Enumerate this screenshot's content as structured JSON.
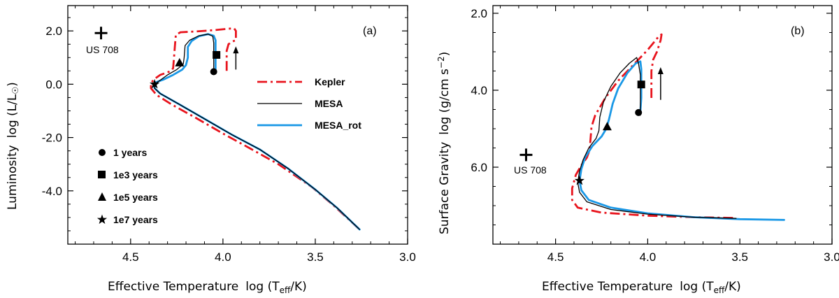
{
  "chart_data": [
    {
      "type": "line",
      "panel_label": "(a)",
      "xlabel": "Effective Temperature",
      "xlabel_math": "log (T_eff/K)",
      "ylabel": "Luminosity",
      "ylabel_math": "log (L/L☉)",
      "xlim": [
        4.84,
        3.0
      ],
      "ylim": [
        -6.0,
        2.95
      ],
      "xticks": [
        "4.5",
        "4.0",
        "3.5",
        "3.0"
      ],
      "yticks": [
        "2.0",
        "0.0",
        "-2.0",
        "-4.0"
      ],
      "target": {
        "name": "US 708",
        "x": 4.66,
        "y": 1.92
      },
      "arrow": {
        "x": 3.93,
        "y_from": 0.55,
        "y_to": 1.42
      },
      "series": [
        {
          "name": "Kepler",
          "color": "#e8141d",
          "style": "dashdot",
          "width": 2.8,
          "points": [
            [
              3.98,
              0.5
            ],
            [
              3.98,
              1.25
            ],
            [
              3.97,
              1.5
            ],
            [
              3.95,
              1.6
            ],
            [
              3.93,
              1.65
            ],
            [
              3.93,
              2.0
            ],
            [
              3.94,
              2.1
            ],
            [
              3.97,
              2.08
            ],
            [
              4.05,
              2.03
            ],
            [
              4.15,
              1.98
            ],
            [
              4.23,
              1.95
            ],
            [
              4.255,
              1.85
            ],
            [
              4.26,
              1.45
            ],
            [
              4.265,
              1.0
            ],
            [
              4.27,
              0.6
            ],
            [
              4.28,
              0.5
            ],
            [
              4.31,
              0.42
            ],
            [
              4.34,
              0.35
            ],
            [
              4.37,
              0.2
            ],
            [
              4.39,
              0.05
            ],
            [
              4.39,
              -0.15
            ],
            [
              4.36,
              -0.4
            ],
            [
              4.28,
              -0.75
            ],
            [
              4.15,
              -1.25
            ],
            [
              4.0,
              -1.85
            ],
            [
              3.85,
              -2.42
            ],
            [
              3.7,
              -3.0
            ],
            [
              3.52,
              -3.85
            ],
            [
              3.4,
              -4.55
            ],
            [
              3.26,
              -5.45
            ]
          ]
        },
        {
          "name": "MESA",
          "color": "#000000",
          "style": "solid",
          "width": 1.3,
          "points": [
            [
              4.05,
              0.47
            ],
            [
              4.05,
              1.1
            ],
            [
              4.05,
              1.55
            ],
            [
              4.055,
              1.8
            ],
            [
              4.08,
              1.88
            ],
            [
              4.13,
              1.82
            ],
            [
              4.18,
              1.65
            ],
            [
              4.205,
              1.45
            ],
            [
              4.21,
              1.0
            ],
            [
              4.215,
              0.75
            ],
            [
              4.25,
              0.55
            ],
            [
              4.3,
              0.35
            ],
            [
              4.34,
              0.15
            ],
            [
              4.37,
              0.0
            ],
            [
              4.37,
              -0.15
            ],
            [
              4.34,
              -0.35
            ],
            [
              4.25,
              -0.7
            ],
            [
              4.1,
              -1.3
            ],
            [
              3.95,
              -1.9
            ],
            [
              3.8,
              -2.45
            ],
            [
              3.65,
              -3.15
            ],
            [
              3.5,
              -3.95
            ],
            [
              3.38,
              -4.65
            ],
            [
              3.26,
              -5.45
            ]
          ]
        },
        {
          "name": "MESA_rot",
          "color": "#1a98e6",
          "style": "solid",
          "width": 2.8,
          "points": [
            [
              4.04,
              0.45
            ],
            [
              4.04,
              0.9
            ],
            [
              4.04,
              1.4
            ],
            [
              4.04,
              1.65
            ],
            [
              4.05,
              1.82
            ],
            [
              4.08,
              1.88
            ],
            [
              4.13,
              1.8
            ],
            [
              4.17,
              1.62
            ],
            [
              4.19,
              1.4
            ],
            [
              4.19,
              1.0
            ],
            [
              4.2,
              0.72
            ],
            [
              4.22,
              0.55
            ],
            [
              4.27,
              0.35
            ],
            [
              4.32,
              0.18
            ],
            [
              4.36,
              0.08
            ],
            [
              4.37,
              -0.05
            ],
            [
              4.37,
              -0.15
            ],
            [
              4.34,
              -0.35
            ],
            [
              4.25,
              -0.7
            ],
            [
              4.1,
              -1.3
            ],
            [
              3.95,
              -1.9
            ],
            [
              3.8,
              -2.45
            ],
            [
              3.65,
              -3.15
            ],
            [
              3.5,
              -3.95
            ],
            [
              3.38,
              -4.65
            ],
            [
              3.26,
              -5.45
            ]
          ]
        }
      ],
      "markers": [
        {
          "label": "1 years",
          "shape": "circle",
          "x": 4.05,
          "y": 0.47
        },
        {
          "label": "1e3 years",
          "shape": "square",
          "x": 4.035,
          "y": 1.1
        },
        {
          "label": "1e5 years",
          "shape": "triangle",
          "x": 4.235,
          "y": 0.8
        },
        {
          "label": "1e7 years",
          "shape": "star",
          "x": 4.37,
          "y": 0.0
        }
      ]
    },
    {
      "type": "line",
      "panel_label": "(b)",
      "xlabel": "Effective Temperature",
      "xlabel_math": "log (T_eff/K)",
      "ylabel": "Surface Gravity",
      "ylabel_math": "log (g/cm s⁻²)",
      "xlim": [
        4.84,
        3.0
      ],
      "ylim": [
        8.0,
        1.8
      ],
      "xticks": [
        "4.5",
        "4.0",
        "3.5",
        "3.0"
      ],
      "yticks": [
        "2.0",
        "4.0",
        "6.0"
      ],
      "target": {
        "name": "US 708",
        "x": 4.66,
        "y": 5.68
      },
      "arrow": {
        "x": 3.93,
        "y_from": 4.25,
        "y_to": 3.4
      },
      "series": [
        {
          "name": "Kepler",
          "color": "#e8141d",
          "style": "dashdot",
          "width": 2.8,
          "points": [
            [
              3.98,
              4.2
            ],
            [
              3.98,
              3.5
            ],
            [
              3.97,
              3.2
            ],
            [
              3.95,
              3.0
            ],
            [
              3.93,
              2.7
            ],
            [
              3.925,
              2.55
            ],
            [
              3.94,
              2.6
            ],
            [
              4.0,
              2.95
            ],
            [
              4.08,
              3.35
            ],
            [
              4.16,
              3.75
            ],
            [
              4.23,
              4.2
            ],
            [
              4.285,
              4.65
            ],
            [
              4.305,
              4.95
            ],
            [
              4.31,
              5.25
            ],
            [
              4.315,
              5.55
            ],
            [
              4.33,
              5.75
            ],
            [
              4.36,
              5.95
            ],
            [
              4.39,
              6.2
            ],
            [
              4.41,
              6.55
            ],
            [
              4.41,
              6.85
            ],
            [
              4.38,
              7.05
            ],
            [
              4.25,
              7.18
            ],
            [
              4.0,
              7.26
            ],
            [
              3.75,
              7.3
            ],
            [
              3.52,
              7.32
            ]
          ]
        },
        {
          "name": "MESA",
          "color": "#000000",
          "style": "solid",
          "width": 1.3,
          "points": [
            [
              4.04,
              4.65
            ],
            [
              4.04,
              4.3
            ],
            [
              4.04,
              3.9
            ],
            [
              4.04,
              3.6
            ],
            [
              4.05,
              3.3
            ],
            [
              4.06,
              3.15
            ],
            [
              4.1,
              3.3
            ],
            [
              4.15,
              3.55
            ],
            [
              4.2,
              3.9
            ],
            [
              4.24,
              4.3
            ],
            [
              4.26,
              4.7
            ],
            [
              4.265,
              5.05
            ],
            [
              4.28,
              5.25
            ],
            [
              4.32,
              5.5
            ],
            [
              4.35,
              5.8
            ],
            [
              4.37,
              6.1
            ],
            [
              4.38,
              6.4
            ],
            [
              4.37,
              6.65
            ],
            [
              4.33,
              6.9
            ],
            [
              4.2,
              7.1
            ],
            [
              4.0,
              7.22
            ],
            [
              3.75,
              7.3
            ],
            [
              3.52,
              7.33
            ]
          ]
        },
        {
          "name": "MESA_rot",
          "color": "#1a98e6",
          "style": "solid",
          "width": 2.8,
          "points": [
            [
              4.04,
              4.55
            ],
            [
              4.035,
              4.2
            ],
            [
              4.035,
              3.8
            ],
            [
              4.035,
              3.45
            ],
            [
              4.04,
              3.25
            ],
            [
              4.065,
              3.3
            ],
            [
              4.11,
              3.55
            ],
            [
              4.16,
              3.95
            ],
            [
              4.19,
              4.35
            ],
            [
              4.21,
              4.75
            ],
            [
              4.225,
              5.0
            ],
            [
              4.25,
              5.2
            ],
            [
              4.3,
              5.45
            ],
            [
              4.34,
              5.75
            ],
            [
              4.36,
              6.05
            ],
            [
              4.37,
              6.35
            ],
            [
              4.36,
              6.6
            ],
            [
              4.32,
              6.85
            ],
            [
              4.2,
              7.05
            ],
            [
              4.0,
              7.2
            ],
            [
              3.75,
              7.3
            ],
            [
              3.5,
              7.35
            ],
            [
              3.26,
              7.37
            ]
          ]
        }
      ],
      "markers": [
        {
          "label": "1 years",
          "shape": "circle",
          "x": 4.05,
          "y": 4.58
        },
        {
          "label": "1e3 years",
          "shape": "square",
          "x": 4.035,
          "y": 3.85
        },
        {
          "label": "1e5 years",
          "shape": "triangle",
          "x": 4.22,
          "y": 4.95
        },
        {
          "label": "1e7 years",
          "shape": "star",
          "x": 4.37,
          "y": 6.35
        }
      ]
    }
  ],
  "legend_lines": [
    {
      "name": "Kepler",
      "color": "#e8141d",
      "style": "dashdot"
    },
    {
      "name": "MESA",
      "color": "#000000",
      "style": "solid"
    },
    {
      "name": "MESA_rot",
      "color": "#1a98e6",
      "style": "solid"
    }
  ],
  "legend_markers": [
    {
      "label": "1 years",
      "shape": "circle"
    },
    {
      "label": "1e3 years",
      "shape": "square"
    },
    {
      "label": "1e5 years",
      "shape": "triangle"
    },
    {
      "label": "1e7 years",
      "shape": "star"
    }
  ],
  "labels": {
    "a_xlabel": "Effective Temperature",
    "a_ylabel": "Luminosity",
    "b_xlabel": "Effective Temperature",
    "b_ylabel": "Surface Gravity",
    "panel_a": "(a)",
    "panel_b": "(b)",
    "target_a": "US 708",
    "target_b": "US 708",
    "leg_kepler": "Kepler",
    "leg_mesa": "MESA",
    "leg_mesa_rot": "MESA_rot",
    "leg_1yr": "1 years",
    "leg_1e3": "1e3 years",
    "leg_1e5": "1e5 years",
    "leg_1e7": "1e7 years"
  }
}
